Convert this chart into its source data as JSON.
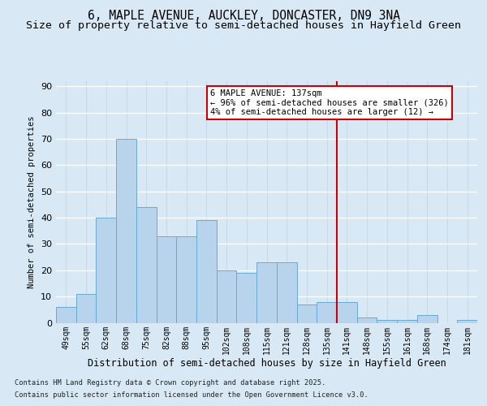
{
  "title1": "6, MAPLE AVENUE, AUCKLEY, DONCASTER, DN9 3NA",
  "title2": "Size of property relative to semi-detached houses in Hayfield Green",
  "xlabel": "Distribution of semi-detached houses by size in Hayfield Green",
  "ylabel": "Number of semi-detached properties",
  "categories": [
    "49sqm",
    "55sqm",
    "62sqm",
    "68sqm",
    "75sqm",
    "82sqm",
    "88sqm",
    "95sqm",
    "102sqm",
    "108sqm",
    "115sqm",
    "121sqm",
    "128sqm",
    "135sqm",
    "141sqm",
    "148sqm",
    "155sqm",
    "161sqm",
    "168sqm",
    "174sqm",
    "181sqm"
  ],
  "values": [
    6,
    11,
    40,
    70,
    44,
    33,
    33,
    39,
    20,
    19,
    23,
    23,
    7,
    8,
    8,
    2,
    1,
    1,
    3,
    0,
    1
  ],
  "bar_color": "#b8d4ec",
  "bar_edge_color": "#6aaad4",
  "vline_color": "#cc0000",
  "annotation_box_color": "#cc0000",
  "bg_color": "#d8e8f4",
  "plot_bg_color": "#d8e8f4",
  "footer1": "Contains HM Land Registry data © Crown copyright and database right 2025.",
  "footer2": "Contains public sector information licensed under the Open Government Licence v3.0.",
  "ylim": [
    0,
    92
  ],
  "title1_fontsize": 10.5,
  "title2_fontsize": 9.5
}
